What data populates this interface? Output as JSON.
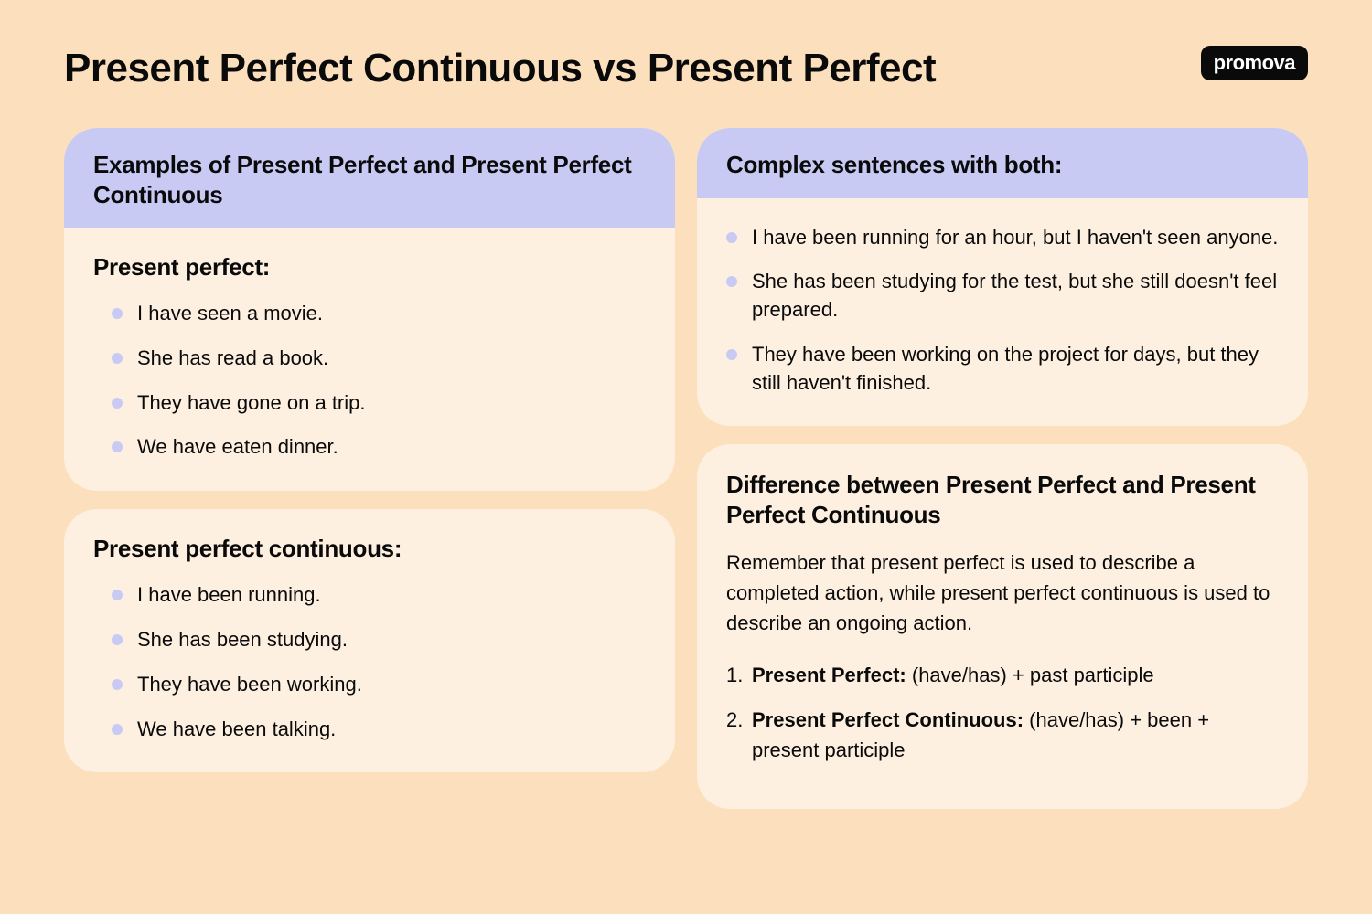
{
  "colors": {
    "page_bg": "#fce0bd",
    "card_bg": "#fdf0e0",
    "header_purple": "#c8caf4",
    "bullet": "#c8caf4",
    "text": "#0a0a0a",
    "logo_bg": "#0a0a0a",
    "logo_text": "#ffffff"
  },
  "typography": {
    "title_size": 44,
    "section_title_size": 26,
    "body_size": 22
  },
  "header": {
    "title": "Present Perfect Continuous vs Present Perfect",
    "logo": "promova"
  },
  "left": {
    "examples_header": "Examples of Present Perfect and Present Perfect Continuous",
    "pp_title": "Present perfect:",
    "pp_items": [
      "I have seen a movie.",
      "She has read a book.",
      "They have gone on a trip.",
      "We have eaten dinner."
    ],
    "ppc_title": "Present perfect continuous:",
    "ppc_items": [
      "I have been running.",
      "She has been studying.",
      "They have been working.",
      "We have been talking."
    ]
  },
  "right": {
    "complex_header": "Complex sentences with both:",
    "complex_items": [
      "I have been running for an hour, but I haven't seen anyone.",
      "She has been studying for the test, but she still doesn't feel prepared.",
      "They have been working on the project for days, but they still haven't finished."
    ],
    "diff_title": "Difference between Present Perfect and Present Perfect Continuous",
    "diff_body": "Remember that present perfect is used to describe a completed action, while present perfect continuous is used to describe an ongoing action.",
    "diff_list": [
      {
        "lead": "Present Perfect:",
        "rest": " (have/has) + past participle"
      },
      {
        "lead": "Present Perfect Continuous:",
        "rest": " (have/has) + been + present participle"
      }
    ]
  }
}
